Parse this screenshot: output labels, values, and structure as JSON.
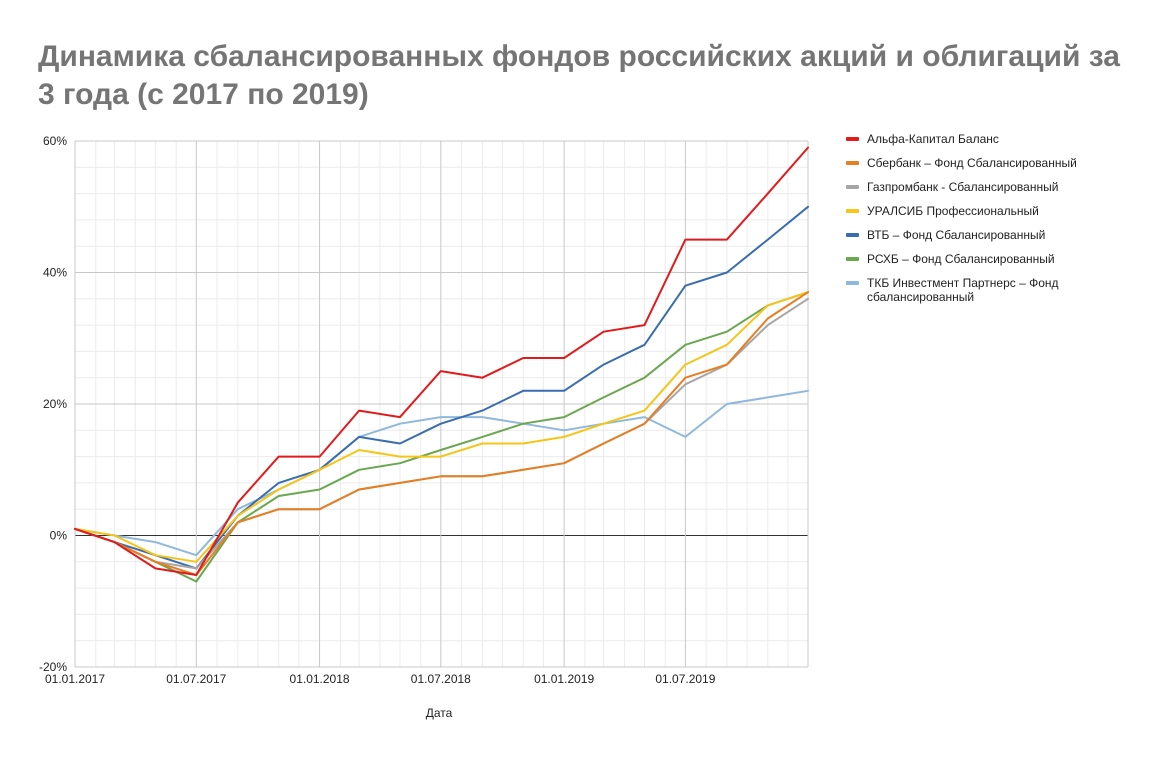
{
  "title": "Динамика сбалансированных фондов российских акций и облигаций за 3 года (с 2017 по 2019)",
  "chart_data": {
    "type": "line",
    "xlabel": "Дата",
    "ylabel": "",
    "x_ticks": [
      "01.01.2017",
      "01.07.2017",
      "01.01.2018",
      "01.07.2018",
      "01.01.2019",
      "01.07.2019"
    ],
    "y_ticks": [
      "60%",
      "40%",
      "20%",
      "0%",
      "-20%"
    ],
    "ylim": [
      -20,
      60
    ],
    "xlim": [
      "2017-01-01",
      "2019-12-31"
    ],
    "grid": true,
    "legend_position": "right",
    "x": [
      "2017-01-01",
      "2017-03-01",
      "2017-05-01",
      "2017-07-01",
      "2017-09-01",
      "2017-11-01",
      "2018-01-01",
      "2018-03-01",
      "2018-05-01",
      "2018-07-01",
      "2018-09-01",
      "2018-11-01",
      "2019-01-01",
      "2019-03-01",
      "2019-05-01",
      "2019-07-01",
      "2019-09-01",
      "2019-11-01",
      "2019-12-31"
    ],
    "series": [
      {
        "name": "Альфа-Капитал Баланс",
        "color": "#e31a1c",
        "values": [
          1,
          -1,
          -5,
          -6,
          5,
          12,
          12,
          19,
          18,
          25,
          24,
          27,
          27,
          31,
          32,
          45,
          45,
          52,
          59
        ]
      },
      {
        "name": "Сбербанк – Фонд Сбалансированный",
        "color": "#e67e22",
        "values": [
          1,
          -1,
          -4,
          -6,
          2,
          4,
          4,
          7,
          8,
          9,
          9,
          10,
          11,
          14,
          17,
          24,
          26,
          33,
          37
        ]
      },
      {
        "name": "Газпромбанк - Сбалансированный",
        "color": "#a6a6a6",
        "values": [
          1,
          -1,
          -4,
          -5,
          2,
          4,
          4,
          7,
          8,
          9,
          9,
          10,
          11,
          14,
          17,
          23,
          26,
          32,
          36
        ]
      },
      {
        "name": "УРАЛСИБ Профессиональный",
        "color": "#f5c518",
        "values": [
          1,
          0,
          -3,
          -4,
          3,
          7,
          10,
          13,
          12,
          12,
          14,
          14,
          15,
          17,
          19,
          26,
          29,
          35,
          37
        ]
      },
      {
        "name": "ВТБ – Фонд Сбалансированный",
        "color": "#3a6db0",
        "values": [
          1,
          -1,
          -3,
          -5,
          3,
          8,
          10,
          15,
          14,
          17,
          19,
          22,
          22,
          26,
          29,
          38,
          40,
          45,
          50
        ]
      },
      {
        "name": "РСХБ – Фонд Сбалансированный",
        "color": "#6aa84f",
        "values": [
          1,
          -1,
          -4,
          -7,
          2,
          6,
          7,
          10,
          11,
          13,
          15,
          17,
          18,
          21,
          24,
          29,
          31,
          35,
          37
        ]
      },
      {
        "name": "ТКБ Инвестмент Партнерс – Фонд сбалансированный",
        "color": "#8fb8dc",
        "values": [
          1,
          0,
          -1,
          -3,
          4,
          7,
          10,
          15,
          17,
          18,
          18,
          17,
          16,
          17,
          18,
          15,
          20,
          21,
          22
        ]
      }
    ]
  }
}
